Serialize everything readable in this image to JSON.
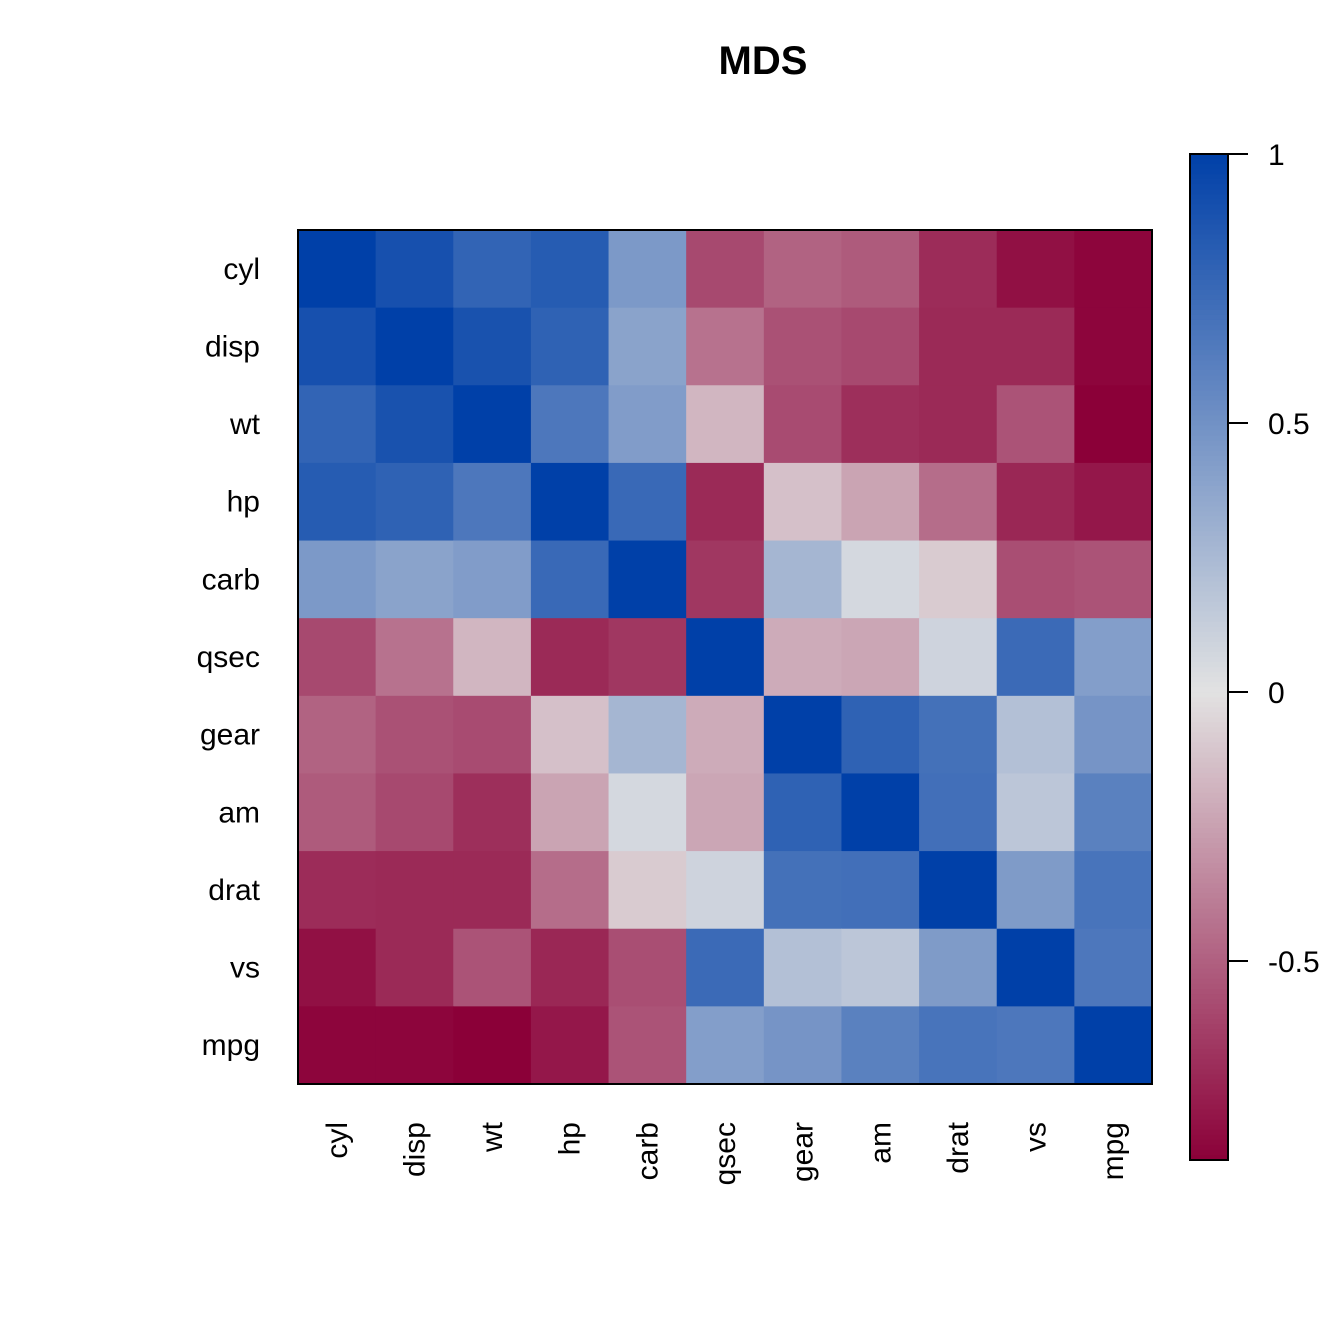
{
  "chart_data": {
    "type": "heatmap",
    "title": "MDS",
    "xlabel": "",
    "ylabel": "",
    "variables": [
      "cyl",
      "disp",
      "wt",
      "hp",
      "carb",
      "qsec",
      "gear",
      "am",
      "drat",
      "vs",
      "mpg"
    ],
    "values": [
      [
        1.0,
        0.9,
        0.78,
        0.83,
        0.45,
        -0.59,
        -0.49,
        -0.52,
        -0.7,
        -0.81,
        -0.85
      ],
      [
        0.9,
        1.0,
        0.89,
        0.79,
        0.39,
        -0.43,
        -0.56,
        -0.59,
        -0.71,
        -0.71,
        -0.85
      ],
      [
        0.78,
        0.89,
        1.0,
        0.66,
        0.43,
        -0.17,
        -0.58,
        -0.69,
        -0.71,
        -0.55,
        -0.87
      ],
      [
        0.83,
        0.79,
        0.66,
        1.0,
        0.75,
        -0.71,
        -0.13,
        -0.24,
        -0.45,
        -0.72,
        -0.78
      ],
      [
        0.45,
        0.39,
        0.43,
        0.75,
        1.0,
        -0.66,
        0.27,
        0.06,
        -0.09,
        -0.57,
        -0.55
      ],
      [
        -0.59,
        -0.43,
        -0.17,
        -0.71,
        -0.66,
        1.0,
        -0.21,
        -0.23,
        0.09,
        0.74,
        0.42
      ],
      [
        -0.49,
        -0.56,
        -0.58,
        -0.13,
        0.27,
        -0.21,
        1.0,
        0.79,
        0.7,
        0.21,
        0.48
      ],
      [
        -0.52,
        -0.59,
        -0.69,
        -0.24,
        0.06,
        -0.23,
        0.79,
        1.0,
        0.71,
        0.17,
        0.6
      ],
      [
        -0.7,
        -0.71,
        -0.71,
        -0.45,
        -0.09,
        0.09,
        0.7,
        0.71,
        1.0,
        0.44,
        0.68
      ],
      [
        -0.81,
        -0.71,
        -0.55,
        -0.72,
        -0.57,
        0.74,
        0.21,
        0.17,
        0.44,
        1.0,
        0.66
      ],
      [
        -0.85,
        -0.85,
        -0.87,
        -0.78,
        -0.55,
        0.42,
        0.48,
        0.6,
        0.68,
        0.66,
        1.0
      ]
    ],
    "colorbar": {
      "range": [
        -0.87,
        1.0
      ],
      "ticks": [
        1,
        0.5,
        0,
        -0.5
      ],
      "tick_labels": [
        "1",
        "0.5",
        "0",
        "-0.5"
      ],
      "low_color": "#8b0038",
      "mid_color": "#e2e2e2",
      "high_color": "#0040a8"
    },
    "grid": false,
    "legend": "right"
  }
}
